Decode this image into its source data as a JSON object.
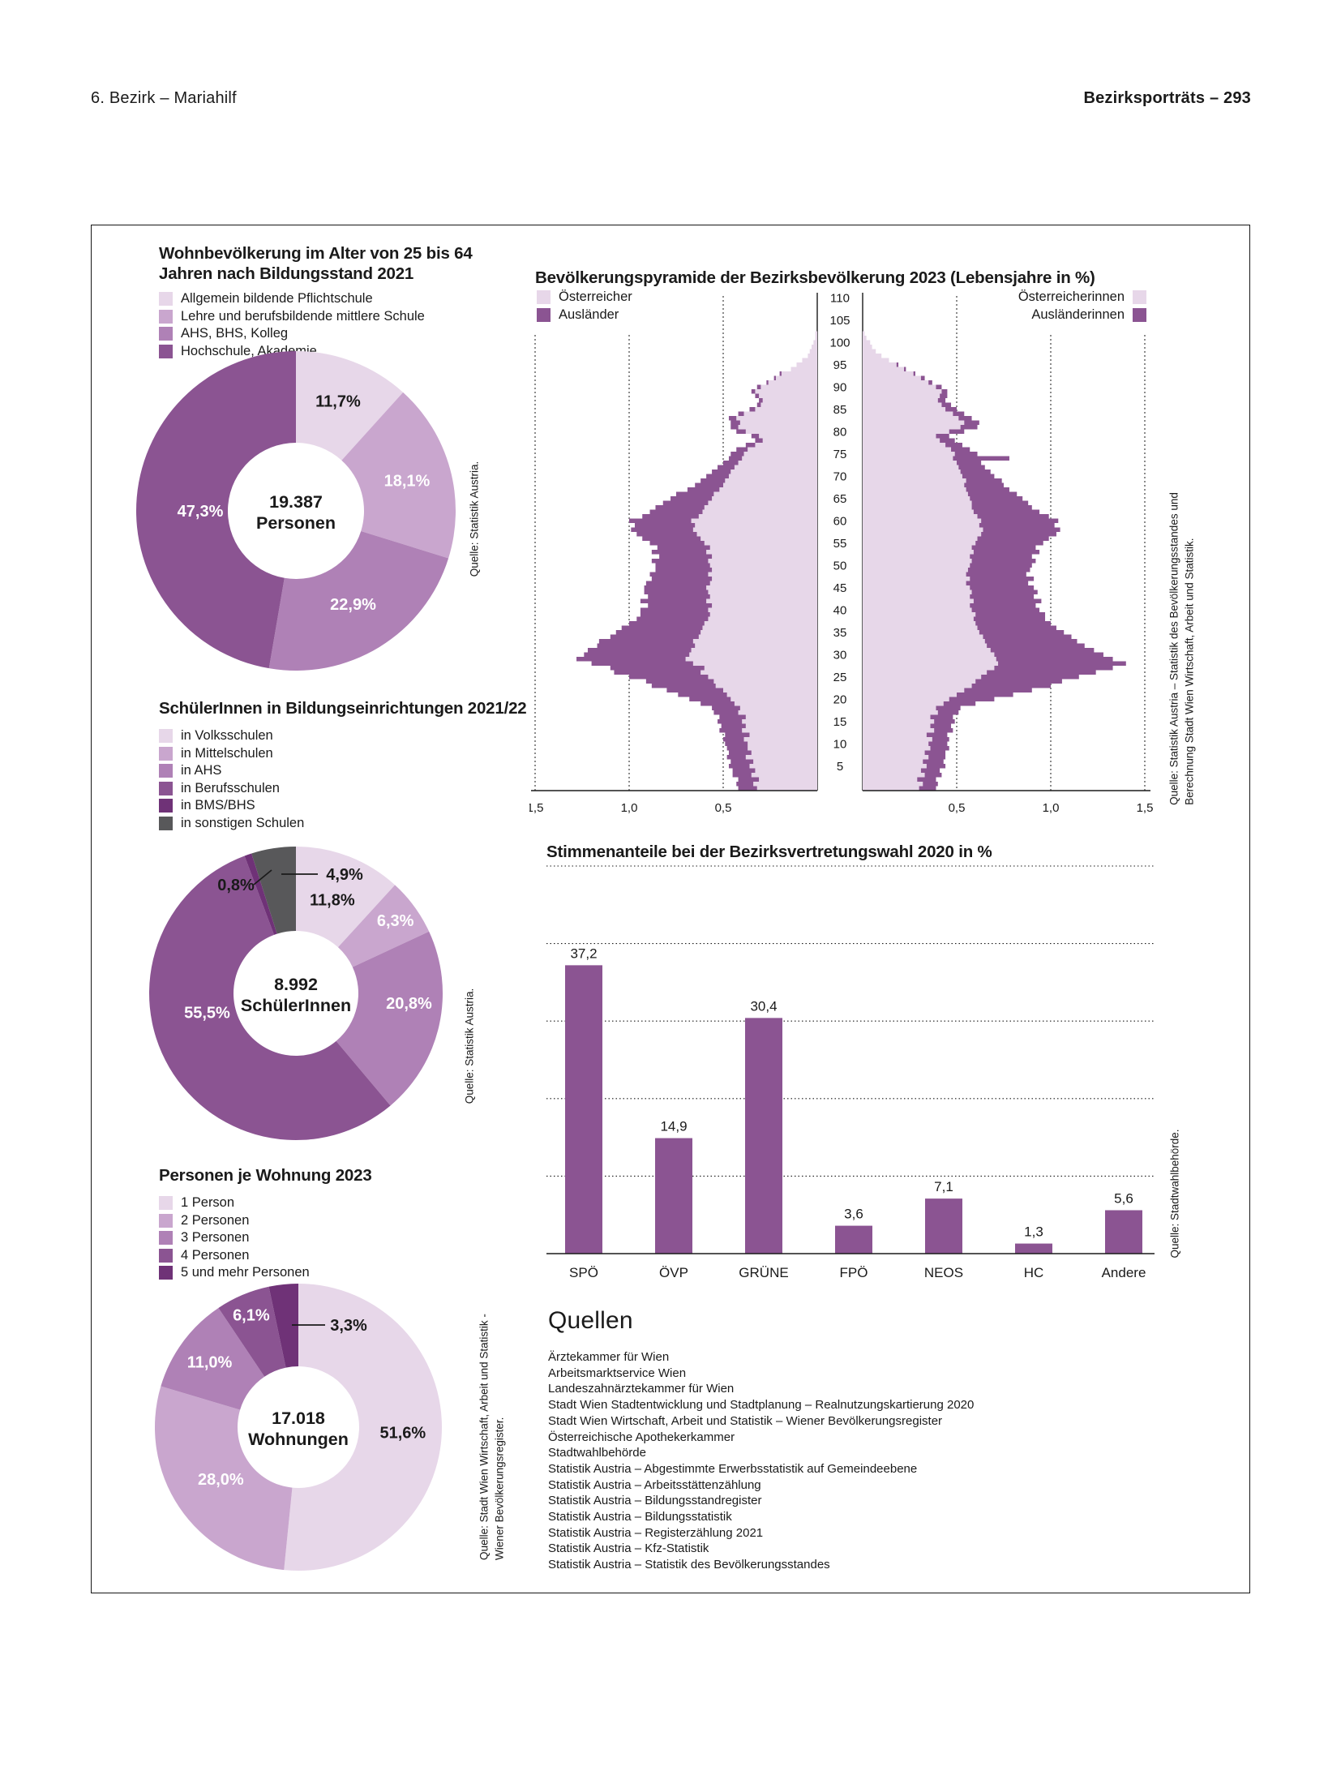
{
  "page_header": {
    "left": "6. Bezirk – Mariahilf",
    "right": "Bezirksporträts – 293"
  },
  "palette": {
    "p1": "#e7d7e9",
    "p2": "#c9a6ce",
    "p3": "#af81b6",
    "p4": "#8b5492",
    "p5": "#6f3277",
    "gray": "#58585a",
    "text": "#1a1a1a"
  },
  "chart_data": [
    {
      "id": "bildungsstand",
      "type": "pie",
      "title_lines": [
        "Wohnbevölkerung im Alter von 25 bis 64",
        "Jahren nach Bildungsstand 2021"
      ],
      "center_lines": [
        "19.387",
        "Personen"
      ],
      "source_lines": [
        "Quelle: Statistik Austria."
      ],
      "slices": [
        {
          "label": "Allgemein bildende Pflichtschule",
          "value": 11.7,
          "display": "11,7%",
          "color": "#e7d7e9",
          "label_color": "#1a1a1a"
        },
        {
          "label": "Lehre und berufsbildende mittlere Schule",
          "value": 18.1,
          "display": "18,1%",
          "color": "#c9a6ce",
          "label_color": "#ffffff"
        },
        {
          "label": "AHS, BHS, Kolleg",
          "value": 22.9,
          "display": "22,9%",
          "color": "#af81b6",
          "label_color": "#ffffff"
        },
        {
          "label": "Hochschule, Akademie",
          "value": 47.3,
          "display": "47,3%",
          "color": "#8b5492",
          "label_color": "#ffffff"
        }
      ]
    },
    {
      "id": "schuelerinnen",
      "type": "pie",
      "title_lines": [
        "SchülerInnen in Bildungseinrichtungen 2021/22"
      ],
      "center_lines": [
        "8.992",
        "SchülerInnen"
      ],
      "source_lines": [
        "Quelle: Statistik Austria."
      ],
      "slices": [
        {
          "label": "in Volksschulen",
          "value": 11.8,
          "display": "11,8%",
          "color": "#e7d7e9",
          "label_color": "#1a1a1a"
        },
        {
          "label": "in Mittelschulen",
          "value": 6.3,
          "display": "6,3%",
          "color": "#c9a6ce",
          "label_color": "#ffffff"
        },
        {
          "label": "in AHS",
          "value": 20.8,
          "display": "20,8%",
          "color": "#af81b6",
          "label_color": "#ffffff"
        },
        {
          "label": "in Berufsschulen",
          "value": 55.5,
          "display": "55,5%",
          "color": "#8b5492",
          "label_color": "#ffffff"
        },
        {
          "label": "in BMS/BHS",
          "value": 0.8,
          "display": "0,8%",
          "color": "#6f3277",
          "label_color": "#1a1a1a"
        },
        {
          "label": "in sonstigen Schulen",
          "value": 4.9,
          "display": "4,9%",
          "color": "#58585a",
          "label_color": "#1a1a1a"
        }
      ]
    },
    {
      "id": "personen-je-wohnung",
      "type": "pie",
      "title_lines": [
        "Personen je Wohnung 2023"
      ],
      "center_lines": [
        "17.018",
        "Wohnungen"
      ],
      "source_lines": [
        "Quelle: Stadt Wien Wirtschaft, Arbeit und Statistik -",
        "Wiener Bevölkerungsregister."
      ],
      "slices": [
        {
          "label": "1 Person",
          "value": 51.6,
          "display": "51,6%",
          "color": "#e7d7e9",
          "label_color": "#1a1a1a"
        },
        {
          "label": "2 Personen",
          "value": 28.0,
          "display": "28,0%",
          "color": "#c9a6ce",
          "label_color": "#ffffff"
        },
        {
          "label": "3 Personen",
          "value": 11.0,
          "display": "11,0%",
          "color": "#af81b6",
          "label_color": "#ffffff"
        },
        {
          "label": "4 Personen",
          "value": 6.1,
          "display": "6,1%",
          "color": "#8b5492",
          "label_color": "#ffffff"
        },
        {
          "label": "5 und mehr Personen",
          "value": 3.3,
          "display": "3,3%",
          "color": "#6f3277",
          "label_color": "#1a1a1a"
        }
      ]
    },
    {
      "id": "bevoelkerungspyramide",
      "type": "bar",
      "variant": "population_pyramid",
      "title": "Bevölkerungspyramide der Bezirksbevölkerung 2023 (Lebensjahre in %)",
      "legend_left": [
        {
          "label": "Österreicher",
          "color": "#e7d7e9"
        },
        {
          "label": "Ausländer",
          "color": "#8b5492"
        }
      ],
      "legend_right": [
        {
          "label": "Österreicherinnen",
          "color": "#e7d7e9"
        },
        {
          "label": "Ausländerinnen",
          "color": "#8b5492"
        }
      ],
      "age_min": 0,
      "age_tick_step": 5,
      "age_tick_max": 110,
      "xlim": 1.5,
      "x_ticks_left": [
        "1,5",
        "1,0",
        "0,5"
      ],
      "x_ticks_right": [
        "0,5",
        "1,0",
        "1,5"
      ],
      "series": [
        {
          "name": "Österreicher",
          "side": "left",
          "values": [
            0.32,
            0.34,
            0.31,
            0.35,
            0.33,
            0.36,
            0.34,
            0.38,
            0.35,
            0.37,
            0.37,
            0.39,
            0.36,
            0.4,
            0.38,
            0.4,
            0.38,
            0.42,
            0.41,
            0.44,
            0.46,
            0.48,
            0.5,
            0.54,
            0.55,
            0.58,
            0.62,
            0.6,
            0.66,
            0.7,
            0.68,
            0.67,
            0.65,
            0.66,
            0.63,
            0.62,
            0.61,
            0.6,
            0.58,
            0.57,
            0.58,
            0.56,
            0.59,
            0.57,
            0.58,
            0.59,
            0.57,
            0.56,
            0.58,
            0.56,
            0.57,
            0.58,
            0.56,
            0.59,
            0.57,
            0.6,
            0.62,
            0.64,
            0.66,
            0.65,
            0.67,
            0.63,
            0.61,
            0.6,
            0.58,
            0.56,
            0.55,
            0.52,
            0.5,
            0.49,
            0.47,
            0.46,
            0.44,
            0.42,
            0.4,
            0.39,
            0.37,
            0.33,
            0.29,
            0.31,
            0.38,
            0.42,
            0.41,
            0.43,
            0.39,
            0.33,
            0.3,
            0.29,
            0.31,
            0.33,
            0.3,
            0.26,
            0.22,
            0.19,
            0.14,
            0.11,
            0.08,
            0.05,
            0.04,
            0.03,
            0.02,
            0.01,
            0.01
          ]
        },
        {
          "name": "Ausländer",
          "side": "left",
          "values": [
            0.1,
            0.09,
            0.11,
            0.1,
            0.12,
            0.11,
            0.12,
            0.1,
            0.12,
            0.11,
            0.12,
            0.11,
            0.13,
            0.12,
            0.13,
            0.13,
            0.14,
            0.13,
            0.15,
            0.18,
            0.22,
            0.26,
            0.3,
            0.34,
            0.36,
            0.42,
            0.46,
            0.5,
            0.54,
            0.58,
            0.56,
            0.55,
            0.52,
            0.5,
            0.47,
            0.45,
            0.43,
            0.4,
            0.38,
            0.37,
            0.36,
            0.34,
            0.35,
            0.33,
            0.34,
            0.33,
            0.34,
            0.32,
            0.31,
            0.3,
            0.29,
            0.3,
            0.28,
            0.29,
            0.28,
            0.29,
            0.31,
            0.32,
            0.33,
            0.32,
            0.33,
            0.3,
            0.28,
            0.26,
            0.24,
            0.22,
            0.2,
            0.17,
            0.15,
            0.13,
            0.12,
            0.1,
            0.09,
            0.08,
            0.07,
            0.07,
            0.06,
            0.05,
            0.04,
            0.04,
            0.05,
            0.04,
            0.05,
            0.04,
            0.03,
            0.03,
            0.02,
            0.02,
            0.02,
            0.02,
            0.02,
            0.01,
            0.01,
            0.01,
            0,
            0,
            0,
            0,
            0,
            0,
            0,
            0,
            0
          ]
        },
        {
          "name": "Österreicherinnen",
          "side": "right",
          "values": [
            0.3,
            0.32,
            0.29,
            0.33,
            0.31,
            0.34,
            0.32,
            0.35,
            0.33,
            0.36,
            0.35,
            0.37,
            0.34,
            0.38,
            0.36,
            0.38,
            0.36,
            0.4,
            0.39,
            0.43,
            0.46,
            0.5,
            0.54,
            0.58,
            0.6,
            0.63,
            0.66,
            0.7,
            0.72,
            0.71,
            0.7,
            0.68,
            0.66,
            0.65,
            0.64,
            0.62,
            0.61,
            0.6,
            0.59,
            0.6,
            0.58,
            0.57,
            0.59,
            0.57,
            0.58,
            0.57,
            0.55,
            0.57,
            0.55,
            0.56,
            0.57,
            0.58,
            0.57,
            0.59,
            0.58,
            0.6,
            0.61,
            0.63,
            0.64,
            0.62,
            0.63,
            0.61,
            0.59,
            0.58,
            0.58,
            0.57,
            0.56,
            0.55,
            0.54,
            0.55,
            0.53,
            0.52,
            0.51,
            0.5,
            0.48,
            0.49,
            0.47,
            0.44,
            0.41,
            0.39,
            0.46,
            0.52,
            0.54,
            0.51,
            0.48,
            0.44,
            0.42,
            0.4,
            0.41,
            0.42,
            0.39,
            0.35,
            0.31,
            0.27,
            0.22,
            0.18,
            0.14,
            0.1,
            0.07,
            0.05,
            0.04,
            0.02,
            0.01
          ]
        },
        {
          "name": "Ausländerinnen",
          "side": "right",
          "values": [
            0.09,
            0.08,
            0.1,
            0.09,
            0.1,
            0.1,
            0.11,
            0.09,
            0.11,
            0.1,
            0.1,
            0.09,
            0.11,
            0.1,
            0.11,
            0.11,
            0.12,
            0.11,
            0.13,
            0.17,
            0.24,
            0.3,
            0.36,
            0.42,
            0.46,
            0.52,
            0.58,
            0.63,
            0.68,
            0.62,
            0.58,
            0.55,
            0.52,
            0.49,
            0.47,
            0.45,
            0.42,
            0.4,
            0.38,
            0.37,
            0.36,
            0.35,
            0.36,
            0.34,
            0.35,
            0.34,
            0.33,
            0.34,
            0.32,
            0.33,
            0.33,
            0.34,
            0.33,
            0.35,
            0.34,
            0.36,
            0.38,
            0.4,
            0.41,
            0.4,
            0.41,
            0.38,
            0.35,
            0.32,
            0.3,
            0.28,
            0.26,
            0.23,
            0.21,
            0.19,
            0.17,
            0.16,
            0.14,
            0.13,
            0.3,
            0.12,
            0.1,
            0.09,
            0.08,
            0.07,
            0.08,
            0.09,
            0.08,
            0.07,
            0.06,
            0.06,
            0.05,
            0.04,
            0.04,
            0.03,
            0.03,
            0.02,
            0.02,
            0.01,
            0.01,
            0.01,
            0,
            0,
            0,
            0,
            0,
            0,
            0
          ]
        }
      ],
      "source_lines": [
        "Quelle: Statistik Austria – Statistik des Bevölkerungsstandes und",
        "Berechnung Stadt Wien Wirtschaft, Arbeit und Statistik."
      ]
    },
    {
      "id": "wahl2020",
      "type": "bar",
      "title": "Stimmenanteile bei der Bezirksvertretungswahl 2020 in %",
      "categories": [
        "SPÖ",
        "ÖVP",
        "GRÜNE",
        "FPÖ",
        "NEOS",
        "HC",
        "Andere"
      ],
      "values": [
        37.2,
        14.9,
        30.4,
        3.6,
        7.1,
        1.3,
        5.6
      ],
      "value_labels": [
        "37,2",
        "14,9",
        "30,4",
        "3,6",
        "7,1",
        "1,3",
        "5,6"
      ],
      "ylim": [
        0,
        50
      ],
      "gridlines": [
        10,
        20,
        30,
        40,
        50
      ],
      "bar_color": "#8b5492",
      "source_lines": [
        "Quelle: Stadtwahlbehörde."
      ]
    }
  ],
  "quellen": {
    "heading": "Quellen",
    "items": [
      "Ärztekammer für Wien",
      "Arbeitsmarktservice Wien",
      "Landeszahnärztekammer für Wien",
      "Stadt Wien Stadtentwicklung und Stadtplanung – Realnutzungskartierung 2020",
      "Stadt Wien Wirtschaft, Arbeit und Statistik – Wiener Bevölkerungsregister",
      "Österreichische Apothekerkammer",
      "Stadtwahlbehörde",
      "Statistik Austria – Abgestimmte Erwerbsstatistik auf Gemeindeebene",
      "Statistik Austria – Arbeitsstättenzählung",
      "Statistik Austria – Bildungsstandregister",
      "Statistik Austria – Bildungsstatistik",
      "Statistik Austria – Registerzählung 2021",
      "Statistik Austria – Kfz-Statistik",
      "Statistik Austria – Statistik des Bevölkerungsstandes"
    ]
  }
}
